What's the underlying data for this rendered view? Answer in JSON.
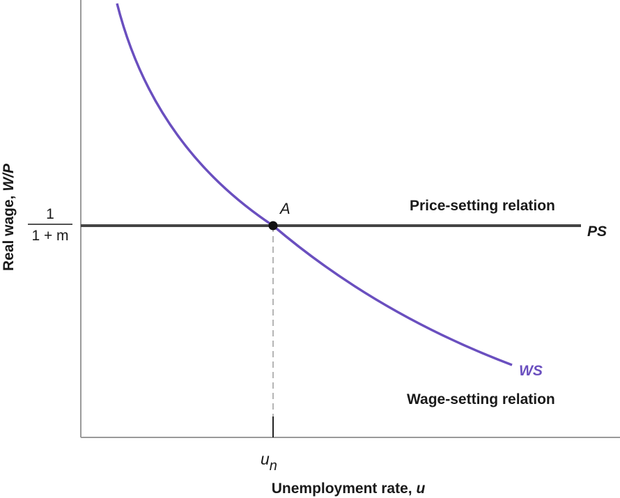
{
  "axes": {
    "y_label_prefix": "Real wage, ",
    "y_label_symbol": "W/P",
    "x_label_prefix": "Unemployment rate, ",
    "x_label_symbol": "u"
  },
  "y_tick": {
    "numerator": "1",
    "denominator": "1 + m"
  },
  "x_tick": {
    "base": "u",
    "subscript": "n"
  },
  "point": {
    "label": "A"
  },
  "ps_curve": {
    "symbol": "PS",
    "relation": "Price-setting relation",
    "color": "#444444"
  },
  "ws_curve": {
    "symbol": "WS",
    "relation": "Wage-setting relation",
    "color": "#6a4fbf"
  }
}
